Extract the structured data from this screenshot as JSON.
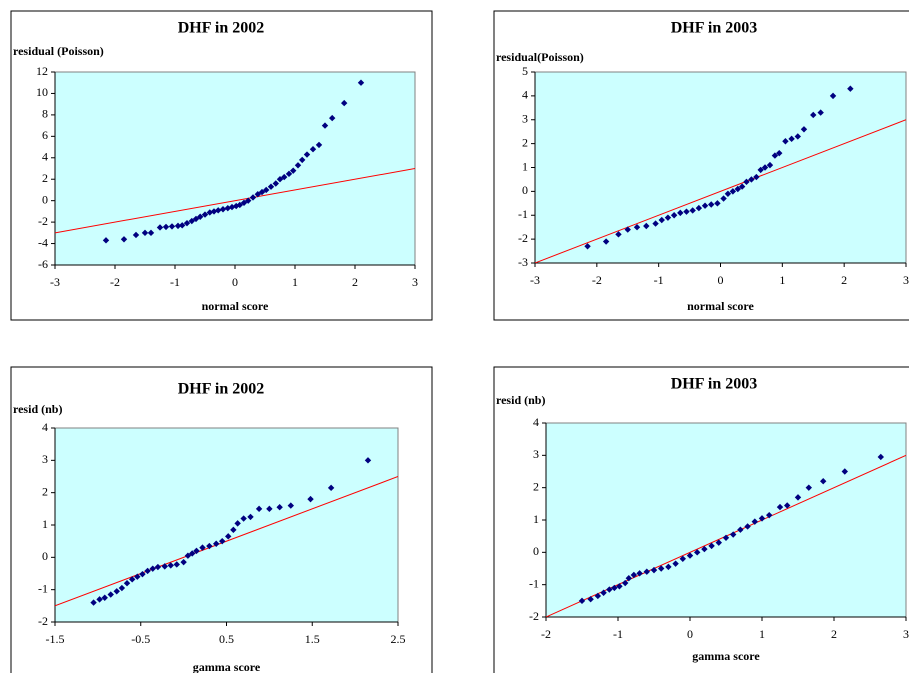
{
  "chart_data": [
    {
      "type": "scatter",
      "title": "DHF in 2002",
      "ylabel": "residual (Poisson)",
      "xlabel": "normal score",
      "xlim": [
        -3,
        3
      ],
      "xticks": [
        -3,
        -2,
        -1,
        0,
        1,
        2,
        3
      ],
      "ylim": [
        -6,
        12
      ],
      "yticks": [
        -6,
        -4,
        -2,
        0,
        2,
        4,
        6,
        8,
        10,
        12
      ],
      "background": "#ccffff",
      "reference_line": {
        "x": [
          -3,
          3
        ],
        "y": [
          -3,
          3
        ],
        "color": "#ff0000"
      },
      "series": [
        {
          "color": "#000080",
          "x": [
            -2.15,
            -1.85,
            -1.65,
            -1.5,
            -1.4,
            -1.25,
            -1.15,
            -1.05,
            -0.95,
            -0.88,
            -0.8,
            -0.72,
            -0.65,
            -0.58,
            -0.5,
            -0.42,
            -0.35,
            -0.28,
            -0.2,
            -0.12,
            -0.05,
            0.02,
            0.08,
            0.15,
            0.22,
            0.3,
            0.38,
            0.45,
            0.52,
            0.6,
            0.68,
            0.75,
            0.82,
            0.9,
            0.97,
            1.05,
            1.12,
            1.2,
            1.3,
            1.4,
            1.5,
            1.62,
            1.82,
            2.1
          ],
          "values": [
            -3.7,
            -3.6,
            -3.2,
            -3.0,
            -3.0,
            -2.5,
            -2.45,
            -2.4,
            -2.35,
            -2.3,
            -2.1,
            -1.9,
            -1.7,
            -1.5,
            -1.3,
            -1.1,
            -1.0,
            -0.9,
            -0.8,
            -0.7,
            -0.6,
            -0.5,
            -0.4,
            -0.2,
            0,
            0.3,
            0.6,
            0.8,
            1.0,
            1.3,
            1.6,
            2.0,
            2.2,
            2.5,
            2.8,
            3.3,
            3.8,
            4.3,
            4.8,
            5.2,
            7.0,
            7.7,
            9.1,
            11.0
          ]
        }
      ]
    },
    {
      "type": "scatter",
      "title": "DHF in 2003",
      "ylabel": "residual(Poisson)",
      "xlabel": "normal score",
      "xlim": [
        -3,
        3
      ],
      "xticks": [
        -3,
        -2,
        -1,
        0,
        1,
        2,
        3
      ],
      "ylim": [
        -3,
        5
      ],
      "yticks": [
        -3,
        -2,
        -1,
        0,
        1,
        2,
        3,
        4,
        5
      ],
      "background": "#ccffff",
      "reference_line": {
        "x": [
          -3,
          3
        ],
        "y": [
          -3,
          3
        ],
        "color": "#ff0000"
      },
      "series": [
        {
          "color": "#000080",
          "x": [
            -2.15,
            -1.85,
            -1.65,
            -1.5,
            -1.35,
            -1.2,
            -1.05,
            -0.95,
            -0.85,
            -0.75,
            -0.65,
            -0.55,
            -0.45,
            -0.35,
            -0.25,
            -0.15,
            -0.05,
            0.05,
            0.12,
            0.2,
            0.28,
            0.35,
            0.42,
            0.5,
            0.58,
            0.65,
            0.72,
            0.8,
            0.88,
            0.95,
            1.05,
            1.15,
            1.25,
            1.35,
            1.5,
            1.62,
            1.82,
            2.1
          ],
          "values": [
            -2.3,
            -2.1,
            -1.8,
            -1.6,
            -1.5,
            -1.45,
            -1.35,
            -1.2,
            -1.1,
            -1.0,
            -0.9,
            -0.85,
            -0.8,
            -0.7,
            -0.6,
            -0.55,
            -0.5,
            -0.3,
            -0.1,
            0,
            0.1,
            0.2,
            0.4,
            0.5,
            0.6,
            0.9,
            1.0,
            1.1,
            1.5,
            1.6,
            2.1,
            2.2,
            2.3,
            2.6,
            3.2,
            3.3,
            4.0,
            4.3
          ]
        }
      ]
    },
    {
      "type": "scatter",
      "title": "DHF in 2002",
      "ylabel": "resid (nb)",
      "xlabel": "gamma score",
      "xlim": [
        -1.5,
        2.5
      ],
      "xticks": [
        -1.5,
        -0.5,
        0.5,
        1.5,
        2.5
      ],
      "ylim": [
        -2,
        4
      ],
      "yticks": [
        -2,
        -1,
        0,
        1,
        2,
        3,
        4
      ],
      "background": "#ccffff",
      "reference_line": {
        "x": [
          -1.5,
          2.5
        ],
        "y": [
          -1.5,
          2.5
        ],
        "color": "#ff0000"
      },
      "series": [
        {
          "color": "#000080",
          "x": [
            -1.05,
            -0.98,
            -0.92,
            -0.85,
            -0.78,
            -0.72,
            -0.66,
            -0.6,
            -0.54,
            -0.48,
            -0.42,
            -0.36,
            -0.3,
            -0.22,
            -0.15,
            -0.08,
            0,
            0.05,
            0.1,
            0.15,
            0.22,
            0.3,
            0.38,
            0.45,
            0.52,
            0.58,
            0.63,
            0.7,
            0.78,
            0.88,
            1.0,
            1.12,
            1.25,
            1.48,
            1.72,
            2.15
          ],
          "values": [
            -1.4,
            -1.3,
            -1.25,
            -1.15,
            -1.05,
            -0.95,
            -0.8,
            -0.68,
            -0.6,
            -0.52,
            -0.42,
            -0.35,
            -0.3,
            -0.28,
            -0.25,
            -0.22,
            -0.15,
            0.05,
            0.12,
            0.2,
            0.3,
            0.35,
            0.42,
            0.5,
            0.65,
            0.85,
            1.05,
            1.2,
            1.25,
            1.5,
            1.5,
            1.55,
            1.6,
            1.8,
            2.15,
            3.0
          ]
        }
      ]
    },
    {
      "type": "scatter",
      "title": "DHF in 2003",
      "ylabel": "resid (nb)",
      "xlabel": "gamma score",
      "xlim": [
        -2,
        3
      ],
      "xticks": [
        -2,
        -1,
        0,
        1,
        2,
        3
      ],
      "ylim": [
        -2,
        4
      ],
      "yticks": [
        -2,
        -1,
        0,
        1,
        2,
        3,
        4
      ],
      "background": "#ccffff",
      "reference_line": {
        "x": [
          -2,
          3
        ],
        "y": [
          -2,
          3
        ],
        "color": "#ff0000"
      },
      "series": [
        {
          "color": "#000080",
          "x": [
            -1.5,
            -1.38,
            -1.28,
            -1.2,
            -1.12,
            -1.05,
            -0.98,
            -0.9,
            -0.85,
            -0.78,
            -0.7,
            -0.6,
            -0.5,
            -0.4,
            -0.3,
            -0.2,
            -0.1,
            0,
            0.1,
            0.2,
            0.3,
            0.4,
            0.5,
            0.6,
            0.7,
            0.8,
            0.9,
            1.0,
            1.1,
            1.25,
            1.35,
            1.5,
            1.65,
            1.85,
            2.15,
            2.65
          ],
          "values": [
            -1.5,
            -1.45,
            -1.35,
            -1.25,
            -1.15,
            -1.1,
            -1.05,
            -0.95,
            -0.8,
            -0.7,
            -0.65,
            -0.6,
            -0.55,
            -0.5,
            -0.45,
            -0.35,
            -0.2,
            -0.1,
            0,
            0.1,
            0.2,
            0.3,
            0.45,
            0.55,
            0.7,
            0.8,
            0.95,
            1.05,
            1.15,
            1.4,
            1.45,
            1.7,
            2.0,
            2.2,
            2.5,
            2.95
          ]
        }
      ]
    }
  ]
}
